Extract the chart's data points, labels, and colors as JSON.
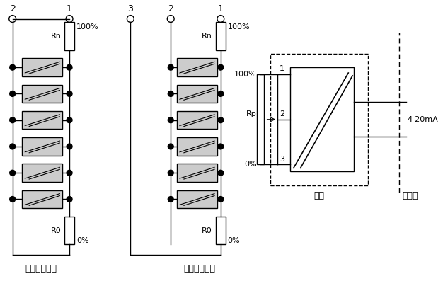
{
  "bg_color": "#ffffff",
  "line_color": "#000000",
  "lw": 1.0,
  "font_size": 9,
  "font_size_sm": 8,
  "label_2wire": "二线制变送器",
  "label_3wire": "三线制变送器",
  "label_xianchang": "现场",
  "label_kongzhishi": "控制室",
  "label_4to20mA": "4-20mA"
}
